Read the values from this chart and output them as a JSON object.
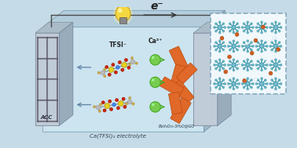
{
  "bg_color": "#c5dbe7",
  "electron_label": "e⁻",
  "tfsi_label": "TFSI⁻",
  "ca2_label": "Ca²⁺",
  "electrolyte_label": "Ca(TFSI)₂ electrolyte",
  "cathode_label": "BaV₆O₁₆·3H₂O@GO",
  "acc_label": "ACC",
  "colors": {
    "bg": "#c5dbe7",
    "battery_front": "#cce4f0",
    "battery_top": "#b8d2e0",
    "battery_right": "#a8c4d4",
    "electrode_face": "#b8c4cc",
    "electrode_top": "#a0b0bc",
    "electrode_right": "#8898a8",
    "wire": "#4a4a4a",
    "bulb_body": "#f5d840",
    "bulb_glow": "#ffe060",
    "ca_ion": "#78cc50",
    "ca_arrow": "#55aa33",
    "tfsi_arrow": "#6688aa",
    "orange_rod": "#e06828",
    "orange_rod_edge": "#b84a10",
    "inset_bg": "#f2f8fc",
    "inset_border": "#90adc0",
    "teal_atom": "#60b0c0",
    "teal_arm": "#50a0b0",
    "orange_dot": "#d06020",
    "white_dot": "#ffffff",
    "electrode_grid": "#505060",
    "text_dark": "#222233",
    "text_mid": "#334455"
  }
}
